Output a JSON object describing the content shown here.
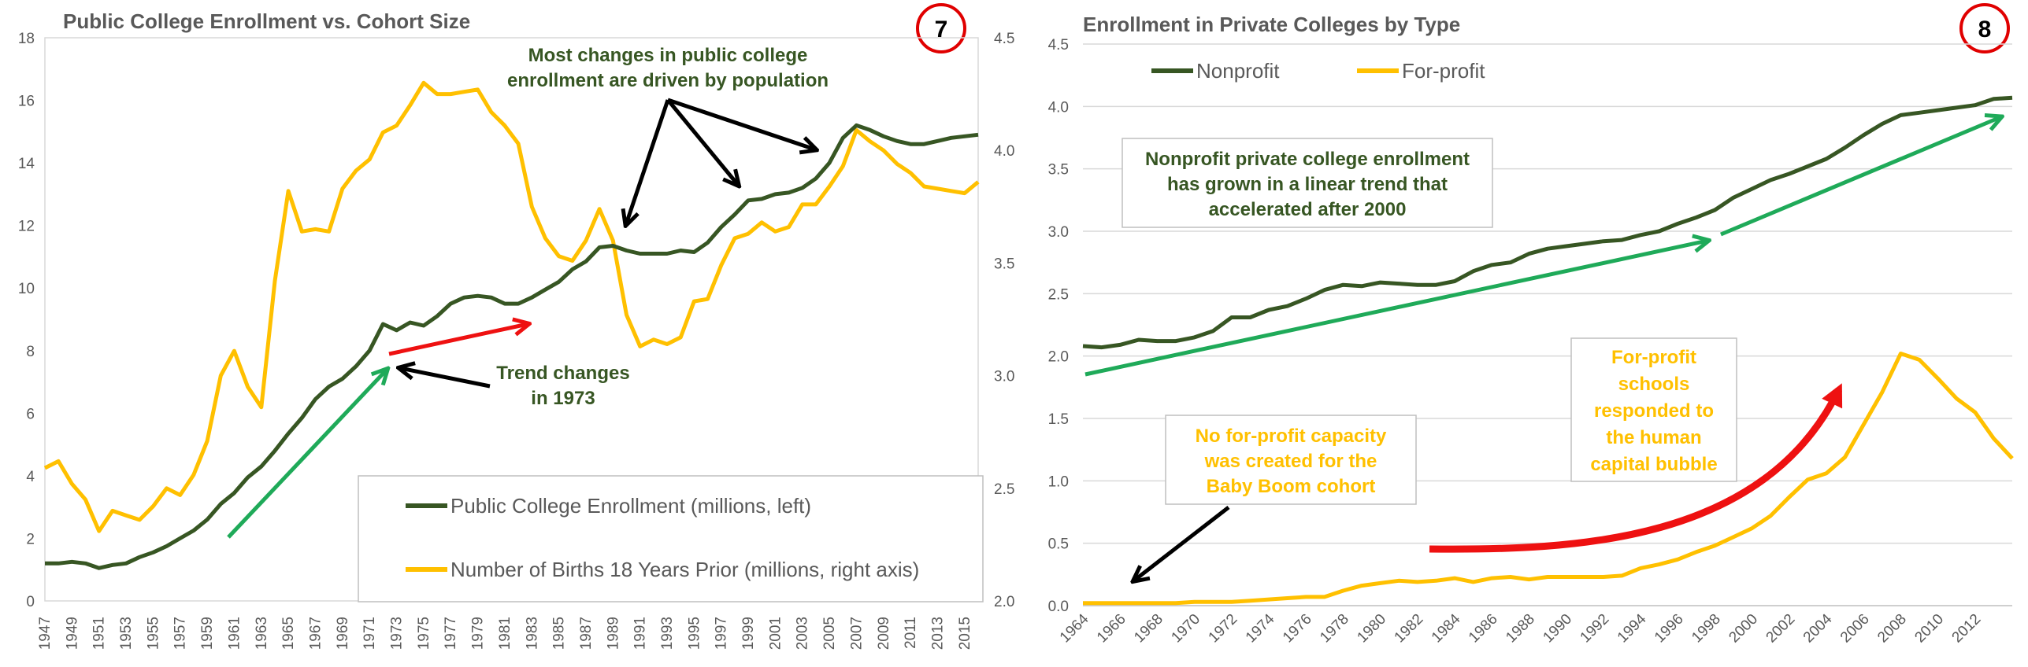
{
  "colors": {
    "enrollment": "#375623",
    "births": "#ffc000",
    "arrow_red": "#ee1111",
    "arrow_green": "#1faa59",
    "arrow_black": "#000000",
    "axis": "#d9d9d9",
    "text": "#595959"
  },
  "chart_data": [
    {
      "type": "line",
      "title": "Public College Enrollment vs. Cohort Size",
      "badge": "7",
      "x_ticks": [
        "1947",
        "1949",
        "1951",
        "1953",
        "1955",
        "1957",
        "1959",
        "1961",
        "1963",
        "1965",
        "1967",
        "1969",
        "1971",
        "1973",
        "1975",
        "1977",
        "1979",
        "1981",
        "1983",
        "1985",
        "1987",
        "1989",
        "1991",
        "1993",
        "1995",
        "1997",
        "1999",
        "2001",
        "2003",
        "2005",
        "2007",
        "2009",
        "2011",
        "2013",
        "2015"
      ],
      "xlim": [
        1947,
        2016
      ],
      "ylim_left": [
        0,
        18
      ],
      "y_left_ticks": [
        "0",
        "2",
        "4",
        "6",
        "8",
        "10",
        "12",
        "14",
        "16",
        "18"
      ],
      "ylim_right": [
        2.0,
        4.5
      ],
      "y_right_ticks": [
        "2.0",
        "2.5",
        "3.0",
        "3.5",
        "4.0",
        "4.5"
      ],
      "series": [
        {
          "name": "Public College Enrollment (millions, left)",
          "axis": "left",
          "x": [
            1947,
            1948,
            1949,
            1950,
            1951,
            1952,
            1953,
            1954,
            1955,
            1956,
            1957,
            1958,
            1959,
            1960,
            1961,
            1962,
            1963,
            1964,
            1965,
            1966,
            1967,
            1968,
            1969,
            1970,
            1971,
            1972,
            1973,
            1974,
            1975,
            1976,
            1977,
            1978,
            1979,
            1980,
            1981,
            1982,
            1983,
            1984,
            1985,
            1986,
            1987,
            1988,
            1989,
            1990,
            1991,
            1992,
            1993,
            1994,
            1995,
            1996,
            1997,
            1998,
            1999,
            2000,
            2001,
            2002,
            2003,
            2004,
            2005,
            2006,
            2007,
            2008,
            2009,
            2010,
            2011,
            2012,
            2013,
            2014,
            2015,
            2016
          ],
          "values": [
            1.2,
            1.2,
            1.25,
            1.2,
            1.05,
            1.15,
            1.2,
            1.4,
            1.55,
            1.75,
            2.0,
            2.25,
            2.6,
            3.1,
            3.45,
            3.95,
            4.3,
            4.8,
            5.35,
            5.85,
            6.45,
            6.85,
            7.1,
            7.5,
            8.0,
            8.85,
            8.65,
            8.9,
            8.8,
            9.1,
            9.5,
            9.7,
            9.75,
            9.7,
            9.5,
            9.5,
            9.7,
            9.95,
            10.2,
            10.6,
            10.85,
            11.3,
            11.35,
            11.2,
            11.1,
            11.1,
            11.1,
            11.2,
            11.15,
            11.45,
            11.95,
            12.35,
            12.8,
            12.85,
            13.0,
            13.05,
            13.2,
            13.5,
            14.0,
            14.8,
            15.2,
            15.05,
            14.85,
            14.7,
            14.6,
            14.6,
            14.7,
            14.8,
            14.85,
            14.9
          ]
        },
        {
          "name": "Number of Births 18 Years Prior (millions, right axis)",
          "axis": "right",
          "x": [
            1947,
            1948,
            1949,
            1950,
            1951,
            1952,
            1953,
            1954,
            1955,
            1956,
            1957,
            1958,
            1959,
            1960,
            1961,
            1962,
            1963,
            1964,
            1965,
            1966,
            1967,
            1968,
            1969,
            1970,
            1971,
            1972,
            1973,
            1974,
            1975,
            1976,
            1977,
            1978,
            1979,
            1980,
            1981,
            1982,
            1983,
            1984,
            1985,
            1986,
            1987,
            1988,
            1989,
            1990,
            1991,
            1992,
            1993,
            1994,
            1995,
            1996,
            1997,
            1998,
            1999,
            2000,
            2001,
            2002,
            2003,
            2004,
            2005,
            2006,
            2007,
            2008,
            2009,
            2010,
            2011,
            2012,
            2013,
            2014,
            2015,
            2016
          ],
          "values": [
            2.59,
            2.62,
            2.52,
            2.45,
            2.31,
            2.4,
            2.38,
            2.36,
            2.42,
            2.5,
            2.47,
            2.56,
            2.71,
            3.0,
            3.11,
            2.95,
            2.86,
            3.42,
            3.82,
            3.64,
            3.65,
            3.64,
            3.83,
            3.91,
            3.96,
            4.08,
            4.11,
            4.2,
            4.3,
            4.25,
            4.25,
            4.26,
            4.27,
            4.17,
            4.11,
            4.03,
            3.75,
            3.61,
            3.53,
            3.51,
            3.6,
            3.74,
            3.6,
            3.27,
            3.13,
            3.16,
            3.14,
            3.17,
            3.33,
            3.34,
            3.49,
            3.61,
            3.63,
            3.68,
            3.64,
            3.66,
            3.76,
            3.76,
            3.84,
            3.93,
            4.09,
            4.04,
            4.0,
            3.94,
            3.9,
            3.84,
            3.83,
            3.82,
            3.81,
            3.86
          ]
        }
      ],
      "legend": {
        "enrollment_label": "Public College Enrollment (millions, left)",
        "births_label": "Number of Births 18 Years Prior (millions, right axis)"
      },
      "annotations": {
        "population_line1": "Most changes in public college",
        "population_line2": "enrollment are driven by population",
        "trend_line1": "Trend changes",
        "trend_line2": "in 1973"
      }
    },
    {
      "type": "line",
      "title": "Enrollment in Private Colleges by Type",
      "badge": "8",
      "x_ticks": [
        "1964",
        "1966",
        "1968",
        "1970",
        "1972",
        "1974",
        "1976",
        "1978",
        "1980",
        "1982",
        "1984",
        "1986",
        "1988",
        "1990",
        "1992",
        "1994",
        "1996",
        "1998",
        "2000",
        "2002",
        "2004",
        "2006",
        "2008",
        "2010",
        "2012"
      ],
      "xlim": [
        1964,
        2014
      ],
      "ylim": [
        0,
        4.5
      ],
      "y_ticks": [
        "0.0",
        "0.5",
        "1.0",
        "1.5",
        "2.0",
        "2.5",
        "3.0",
        "3.5",
        "4.0",
        "4.5"
      ],
      "series": [
        {
          "name": "Nonprofit",
          "x": [
            1964,
            1965,
            1966,
            1967,
            1968,
            1969,
            1970,
            1971,
            1972,
            1973,
            1974,
            1975,
            1976,
            1977,
            1978,
            1979,
            1980,
            1981,
            1982,
            1983,
            1984,
            1985,
            1986,
            1987,
            1988,
            1989,
            1990,
            1991,
            1992,
            1993,
            1994,
            1995,
            1996,
            1997,
            1998,
            1999,
            2000,
            2001,
            2002,
            2003,
            2004,
            2005,
            2006,
            2007,
            2008,
            2009,
            2010,
            2011,
            2012,
            2013,
            2014
          ],
          "values": [
            2.08,
            2.07,
            2.09,
            2.13,
            2.12,
            2.12,
            2.15,
            2.2,
            2.31,
            2.31,
            2.37,
            2.4,
            2.46,
            2.53,
            2.57,
            2.56,
            2.59,
            2.58,
            2.57,
            2.57,
            2.6,
            2.68,
            2.73,
            2.75,
            2.82,
            2.86,
            2.88,
            2.9,
            2.92,
            2.93,
            2.97,
            3.0,
            3.06,
            3.11,
            3.17,
            3.27,
            3.34,
            3.41,
            3.46,
            3.52,
            3.58,
            3.67,
            3.77,
            3.86,
            3.93,
            3.95,
            3.97,
            3.99,
            4.01,
            4.06,
            4.07
          ]
        },
        {
          "name": "For-profit",
          "x": [
            1964,
            1965,
            1966,
            1967,
            1968,
            1969,
            1970,
            1971,
            1972,
            1973,
            1974,
            1975,
            1976,
            1977,
            1978,
            1979,
            1980,
            1981,
            1982,
            1983,
            1984,
            1985,
            1986,
            1987,
            1988,
            1989,
            1990,
            1991,
            1992,
            1993,
            1994,
            1995,
            1996,
            1997,
            1998,
            1999,
            2000,
            2001,
            2002,
            2003,
            2004,
            2005,
            2006,
            2007,
            2008,
            2009,
            2010,
            2011,
            2012,
            2013,
            2014
          ],
          "values": [
            0.02,
            0.02,
            0.02,
            0.02,
            0.02,
            0.02,
            0.03,
            0.03,
            0.03,
            0.04,
            0.05,
            0.06,
            0.07,
            0.07,
            0.12,
            0.16,
            0.18,
            0.2,
            0.19,
            0.2,
            0.22,
            0.19,
            0.22,
            0.23,
            0.21,
            0.23,
            0.23,
            0.23,
            0.23,
            0.24,
            0.3,
            0.33,
            0.37,
            0.43,
            0.48,
            0.55,
            0.62,
            0.72,
            0.87,
            1.01,
            1.06,
            1.19,
            1.45,
            1.71,
            2.02,
            1.97,
            1.82,
            1.66,
            1.55,
            1.34,
            1.18
          ]
        }
      ],
      "legend": {
        "nonprofit_label": "Nonprofit",
        "forprofit_label": "For-profit"
      },
      "annotations": {
        "nonprofit_line1": "Nonprofit private college enrollment",
        "nonprofit_line2": "has grown in a linear trend that",
        "nonprofit_line3": "accelerated after 2000",
        "noforprofit_line1": "No for-profit capacity",
        "noforprofit_line2": "was created for the",
        "noforprofit_line3": "Baby Boom cohort",
        "forprofit_line1": "For-profit",
        "forprofit_line2": "schools",
        "forprofit_line3": "responded to",
        "forprofit_line4": "the human",
        "forprofit_line5": "capital bubble"
      }
    }
  ]
}
